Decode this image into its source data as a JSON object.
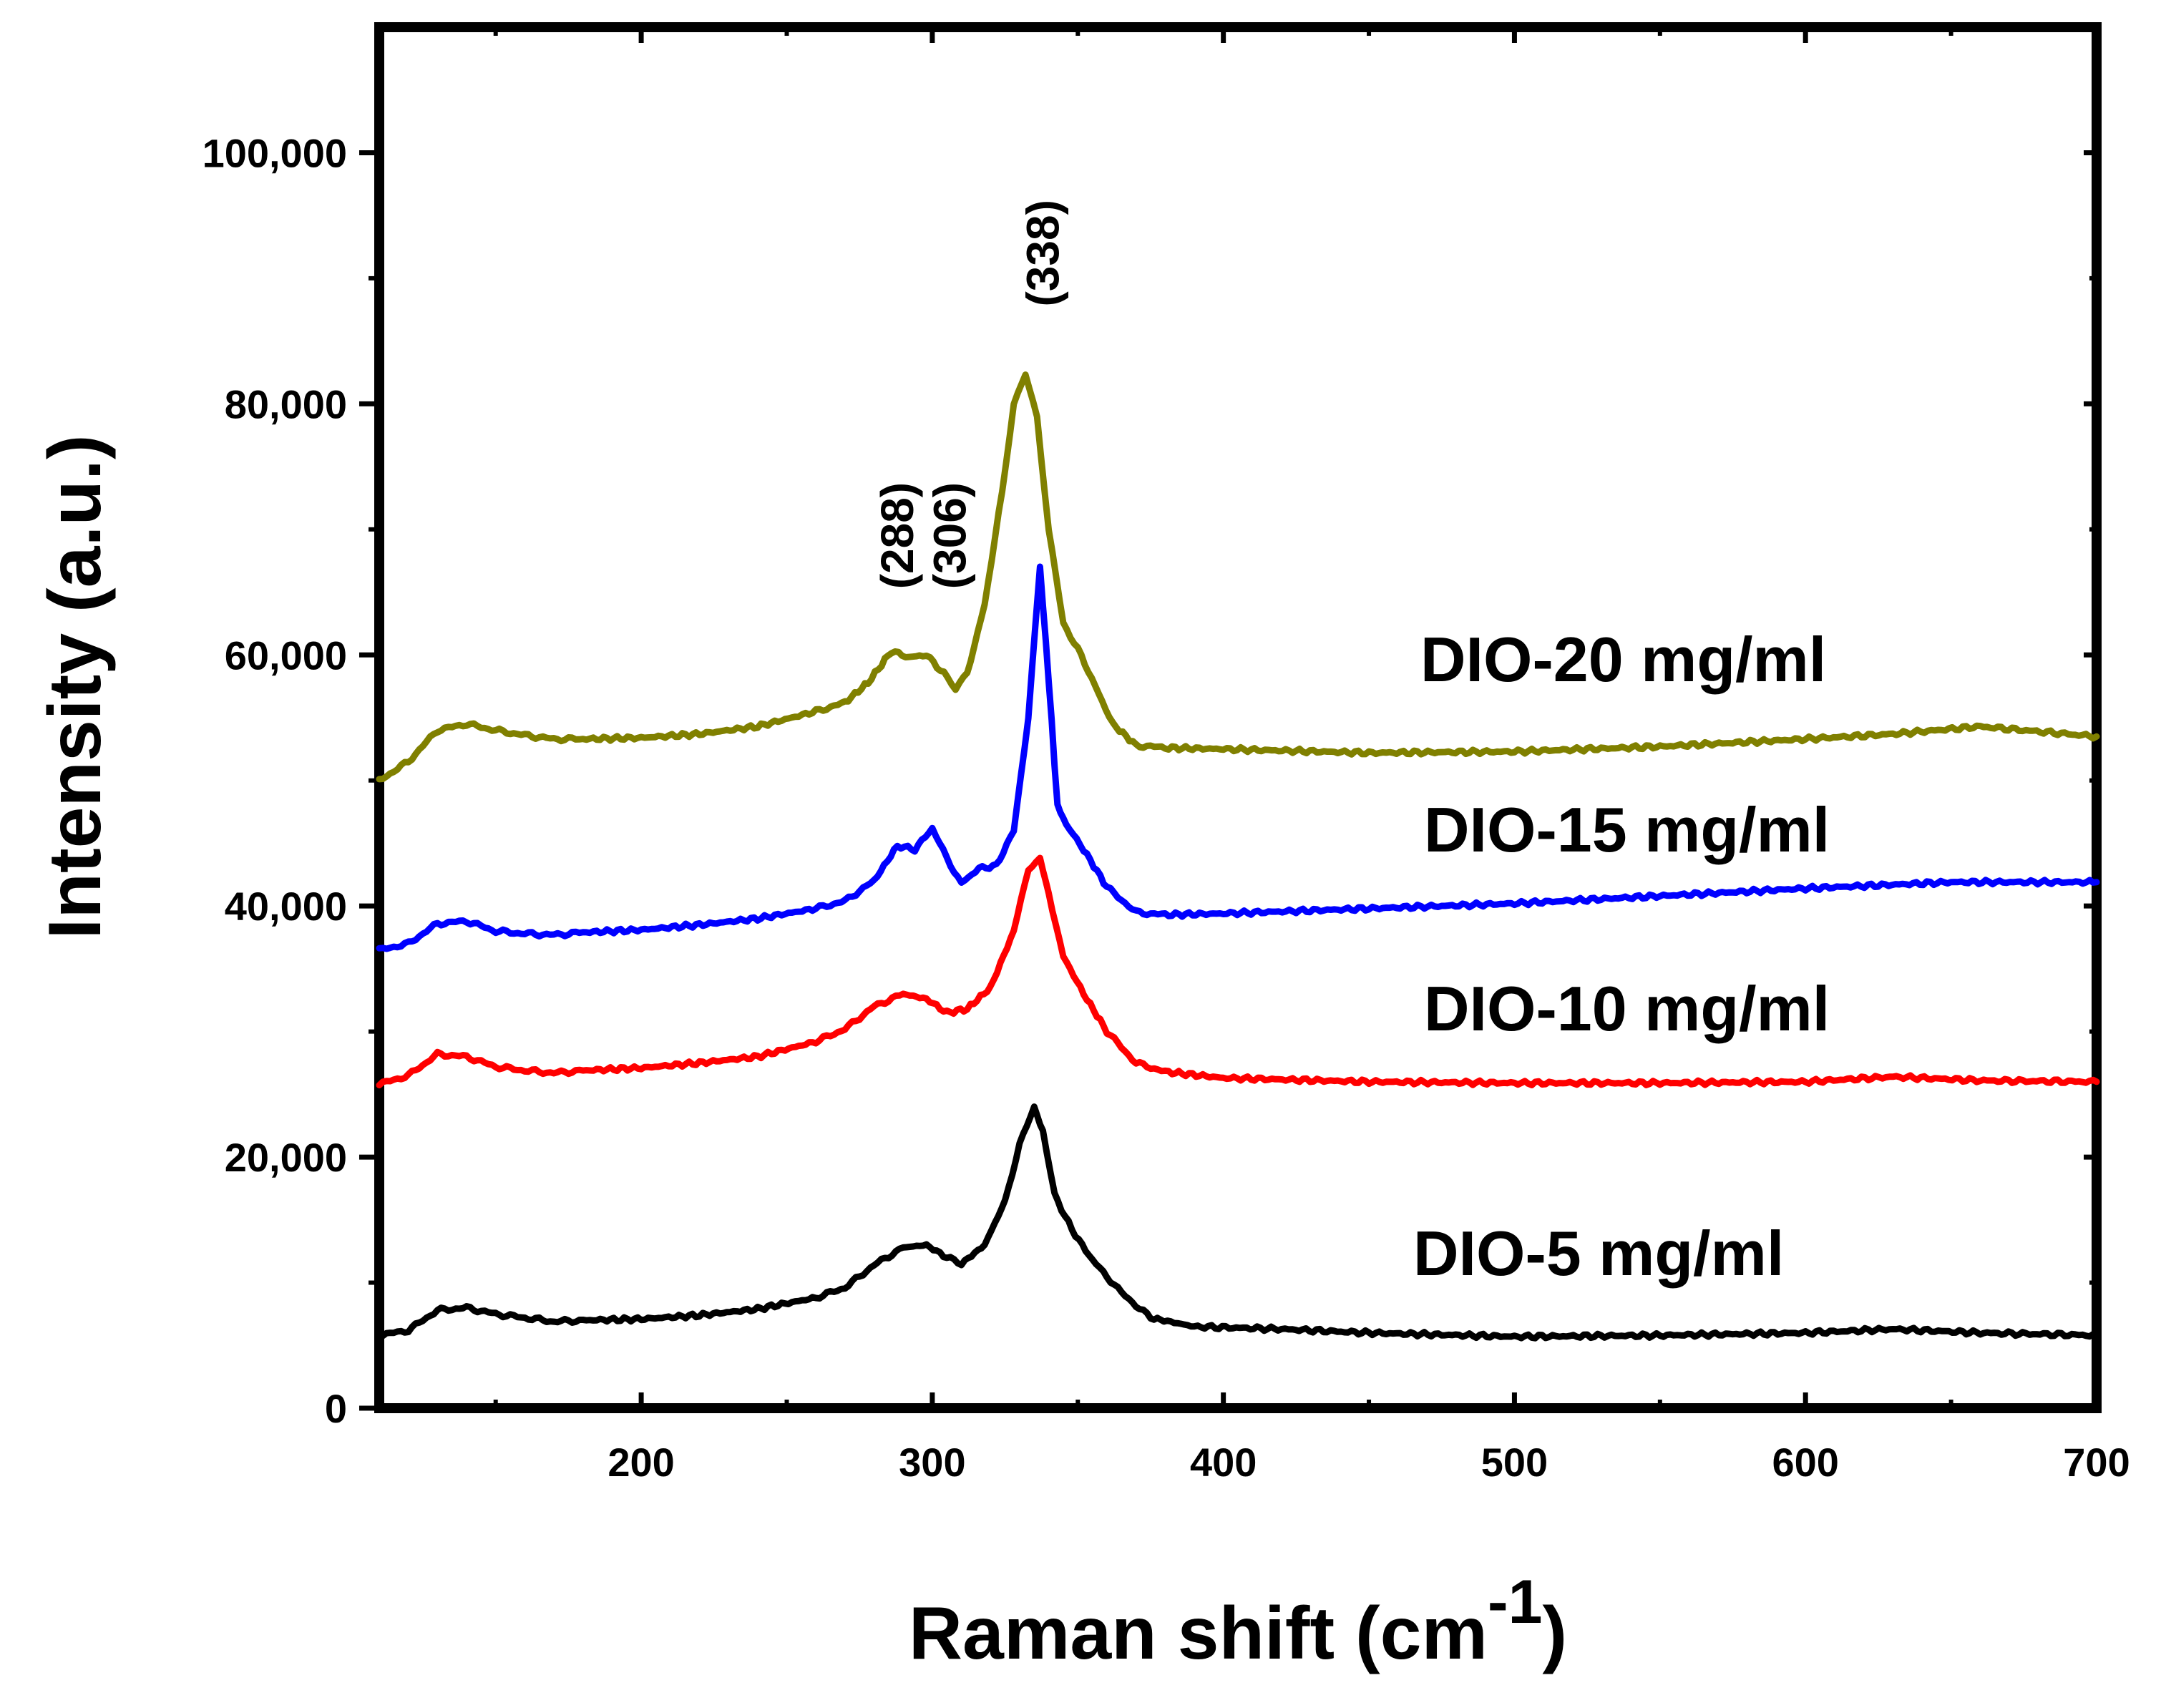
{
  "chart_data": {
    "type": "line",
    "title": "",
    "xlabel": "Raman shift (cm",
    "xlabel_superscript": "-1",
    "xlabel_suffix": ")",
    "ylabel": "Intensity (a.u.)",
    "xlim": [
      110,
      700
    ],
    "ylim": [
      0,
      110000
    ],
    "x_ticks": [
      200,
      300,
      400,
      500,
      600,
      700
    ],
    "x_tick_labels": [
      "200",
      "300",
      "400",
      "500",
      "600",
      "700"
    ],
    "x_minor_ticks": [
      150,
      250,
      350,
      450,
      550,
      650
    ],
    "y_ticks": [
      0,
      20000,
      40000,
      60000,
      80000,
      100000
    ],
    "y_tick_labels": [
      "0",
      "20,000",
      "40,000",
      "60,000",
      "80,000",
      "100,000"
    ],
    "y_minor_ticks": [
      10000,
      30000,
      50000,
      70000,
      90000
    ],
    "grid": false,
    "series": [
      {
        "name": "DIO-5 mg/ml",
        "label": "DIO-5 mg/ml",
        "color": "#000000",
        "x": [
          110,
          120,
          130,
          140,
          150,
          160,
          170,
          180,
          200,
          220,
          240,
          260,
          270,
          280,
          290,
          298,
          305,
          310,
          318,
          325,
          330,
          335,
          338,
          342,
          348,
          355,
          365,
          375,
          390,
          420,
          450,
          500,
          550,
          600,
          630,
          660,
          700
        ],
        "values": [
          5800,
          6200,
          7800,
          8000,
          7500,
          7200,
          6900,
          7000,
          7100,
          7400,
          7900,
          8800,
          9600,
          11400,
          12800,
          13000,
          12000,
          11500,
          13000,
          16500,
          21000,
          24000,
          22000,
          17000,
          14200,
          11800,
          9200,
          7200,
          6500,
          6300,
          6000,
          5700,
          5800,
          6000,
          6300,
          6000,
          5800
        ]
      },
      {
        "name": "DIO-10 mg/ml",
        "label": "DIO-10 mg/ml",
        "color": "#ff0000",
        "x": [
          110,
          120,
          130,
          140,
          150,
          160,
          170,
          180,
          200,
          220,
          240,
          260,
          270,
          280,
          290,
          298,
          305,
          312,
          320,
          328,
          333,
          337,
          340,
          345,
          352,
          360,
          370,
          380,
          400,
          450,
          500,
          550,
          600,
          630,
          660,
          700
        ],
        "values": [
          25800,
          26500,
          28200,
          28000,
          27200,
          26900,
          26700,
          26900,
          27100,
          27500,
          28000,
          29200,
          30200,
          32000,
          33000,
          32600,
          31500,
          31800,
          33500,
          38000,
          43000,
          43800,
          41000,
          36000,
          33000,
          30000,
          27500,
          26800,
          26300,
          26000,
          25900,
          25900,
          26000,
          26400,
          26100,
          26000
        ]
      },
      {
        "name": "DIO-15 mg/ml",
        "label": "DIO-15 mg/ml",
        "color": "#0000ff",
        "x": [
          110,
          120,
          130,
          140,
          150,
          160,
          170,
          180,
          200,
          220,
          240,
          260,
          270,
          280,
          288,
          294,
          300,
          305,
          310,
          316,
          322,
          328,
          333,
          337,
          340,
          343,
          346,
          352,
          360,
          370,
          380,
          400,
          450,
          500,
          550,
          600,
          650,
          700
        ],
        "values": [
          36500,
          37000,
          38600,
          38800,
          38000,
          37800,
          37700,
          37900,
          38100,
          38500,
          39000,
          39800,
          40400,
          42000,
          44800,
          44500,
          46200,
          43800,
          41800,
          43000,
          43200,
          46000,
          55000,
          67000,
          58000,
          48000,
          46500,
          44500,
          41500,
          39500,
          39300,
          39400,
          39800,
          40200,
          40800,
          41400,
          41900,
          41900
        ]
      },
      {
        "name": "DIO-20 mg/ml",
        "label": "DIO-20 mg/ml",
        "color": "#808000",
        "x": [
          110,
          120,
          130,
          140,
          150,
          160,
          170,
          180,
          200,
          220,
          240,
          260,
          270,
          278,
          286,
          292,
          298,
          304,
          308,
          312,
          318,
          324,
          328,
          332,
          336,
          340,
          345,
          350,
          356,
          362,
          370,
          380,
          400,
          450,
          500,
          550,
          600,
          630,
          660,
          700
        ],
        "values": [
          50000,
          51500,
          54000,
          54500,
          54000,
          53600,
          53300,
          53300,
          53400,
          53700,
          54300,
          55500,
          56200,
          57800,
          60300,
          59800,
          60000,
          58500,
          57200,
          58500,
          64000,
          73000,
          80000,
          82500,
          79000,
          70000,
          62500,
          60500,
          57500,
          54500,
          52800,
          52600,
          52500,
          52200,
          52300,
          52700,
          53300,
          53700,
          54300,
          53500
        ]
      }
    ],
    "annotations": [
      {
        "text": "(288)",
        "x": 288,
        "y": 69500
      },
      {
        "text": "(306)",
        "x": 306,
        "y": 69500
      },
      {
        "text": "(338)",
        "x": 338,
        "y": 92000
      }
    ]
  }
}
